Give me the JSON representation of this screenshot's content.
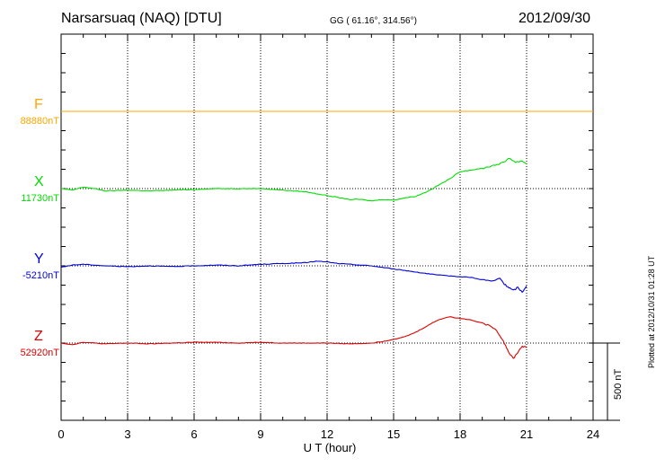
{
  "header": {
    "station": "Narsarsuaq (NAQ)  [DTU]",
    "coordinates": "GG ( 61.16°, 314.56°)",
    "date": "2012/09/30"
  },
  "footer": {
    "plotted_note": "Plotted at 2012/10/31 01:28 UT"
  },
  "chart_data": {
    "type": "line",
    "xlabel": "U T (hour)",
    "xlim": [
      0,
      24
    ],
    "xticks": [
      0,
      3,
      6,
      9,
      12,
      15,
      18,
      21,
      24
    ],
    "scale_bar_label": "500 nT",
    "scale_bar_nT": 500,
    "grid": true,
    "series": [
      {
        "name": "F",
        "baseline_label": "88880nT",
        "baseline_nT": 88880,
        "color": "#ffa500",
        "x": [
          0,
          24
        ],
        "y": [
          0,
          0
        ]
      },
      {
        "name": "X",
        "baseline_label": "11730nT",
        "baseline_nT": 11730,
        "color": "#00dd00",
        "x": [
          0,
          0.5,
          1,
          1.5,
          2,
          3,
          4,
          5,
          6,
          7,
          8,
          9,
          10,
          11,
          12,
          13,
          13.5,
          14,
          14.5,
          15,
          15.5,
          16,
          16.5,
          17,
          17.5,
          18,
          18.5,
          19,
          19.5,
          20,
          20.2,
          20.5,
          20.8,
          21
        ],
        "y": [
          0,
          -10,
          10,
          0,
          -15,
          -10,
          -15,
          -10,
          -5,
          0,
          0,
          0,
          -10,
          -20,
          -45,
          -70,
          -70,
          -80,
          -70,
          -75,
          -60,
          -50,
          -20,
          20,
          60,
          110,
          120,
          130,
          150,
          170,
          200,
          170,
          180,
          160
        ]
      },
      {
        "name": "Y",
        "baseline_label": "-5210nT",
        "baseline_nT": -5210,
        "color": "#0000dd",
        "x": [
          0,
          0.5,
          1,
          2,
          3,
          4,
          5,
          6,
          7,
          8,
          9,
          10,
          11,
          11.5,
          12,
          12.5,
          13,
          14,
          15,
          16,
          17,
          18,
          18.5,
          19,
          19.5,
          19.8,
          20,
          20.2,
          20.4,
          20.6,
          20.8,
          21
        ],
        "y": [
          -10,
          5,
          10,
          0,
          -5,
          0,
          -5,
          0,
          5,
          0,
          10,
          15,
          20,
          30,
          25,
          15,
          10,
          0,
          -20,
          -40,
          -60,
          -70,
          -75,
          -90,
          -100,
          -80,
          -120,
          -140,
          -160,
          -140,
          -170,
          -130
        ]
      },
      {
        "name": "Z",
        "baseline_label": "52920nT",
        "baseline_nT": 52920,
        "color": "#dd0000",
        "x": [
          0,
          0.5,
          1,
          2,
          3,
          4,
          5,
          6,
          7,
          8,
          9,
          10,
          11,
          12,
          13,
          14,
          14.5,
          15,
          15.5,
          16,
          16.5,
          17,
          17.5,
          18,
          18.5,
          19,
          19.5,
          19.8,
          20,
          20.2,
          20.4,
          20.6,
          20.8,
          21
        ],
        "y": [
          0,
          -10,
          5,
          -5,
          0,
          -5,
          0,
          5,
          5,
          0,
          5,
          0,
          0,
          0,
          -5,
          0,
          10,
          25,
          40,
          70,
          110,
          150,
          170,
          160,
          150,
          130,
          100,
          50,
          0,
          -60,
          -100,
          -60,
          -20,
          -30
        ]
      }
    ]
  }
}
